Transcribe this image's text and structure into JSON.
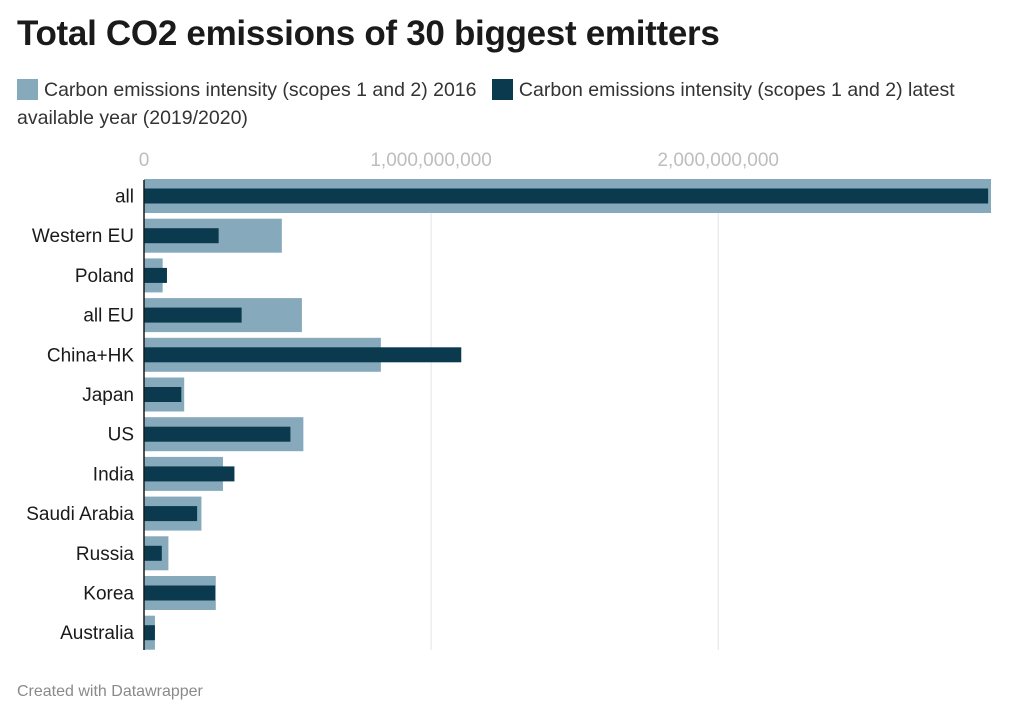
{
  "title": "Total CO2 emissions of 30 biggest emitters",
  "footer": "Created with Datawrapper",
  "chart_data": {
    "type": "bar",
    "orientation": "horizontal",
    "title": "Total CO2 emissions of 30 biggest emitters",
    "categories": [
      "all",
      "Western EU",
      "Poland",
      "all EU",
      "China+HK",
      "Japan",
      "US",
      "India",
      "Saudi Arabia",
      "Russia",
      "Korea",
      "Australia"
    ],
    "series": [
      {
        "name": "Carbon emissions intensity (scopes 1 and 2) 2016",
        "color": "#86a9bb",
        "values": [
          2950000000,
          480000000,
          65000000,
          550000000,
          825000000,
          140000000,
          555000000,
          275000000,
          200000000,
          85000000,
          250000000,
          38000000
        ]
      },
      {
        "name": "Carbon emissions intensity (scopes 1 and 2) latest available year (2019/2020)",
        "color": "#0b3a4e",
        "values": [
          2940000000,
          260000000,
          80000000,
          340000000,
          1105000000,
          130000000,
          510000000,
          315000000,
          185000000,
          62000000,
          248000000,
          38000000
        ]
      }
    ],
    "xlim": [
      0,
      2950000000
    ],
    "ticks": [
      0,
      1000000000,
      2000000000
    ],
    "tick_labels": [
      "0",
      "1,000,000,000",
      "2,000,000,000"
    ],
    "xlabel": "",
    "ylabel": "",
    "grid": true,
    "legend_position": "top"
  }
}
